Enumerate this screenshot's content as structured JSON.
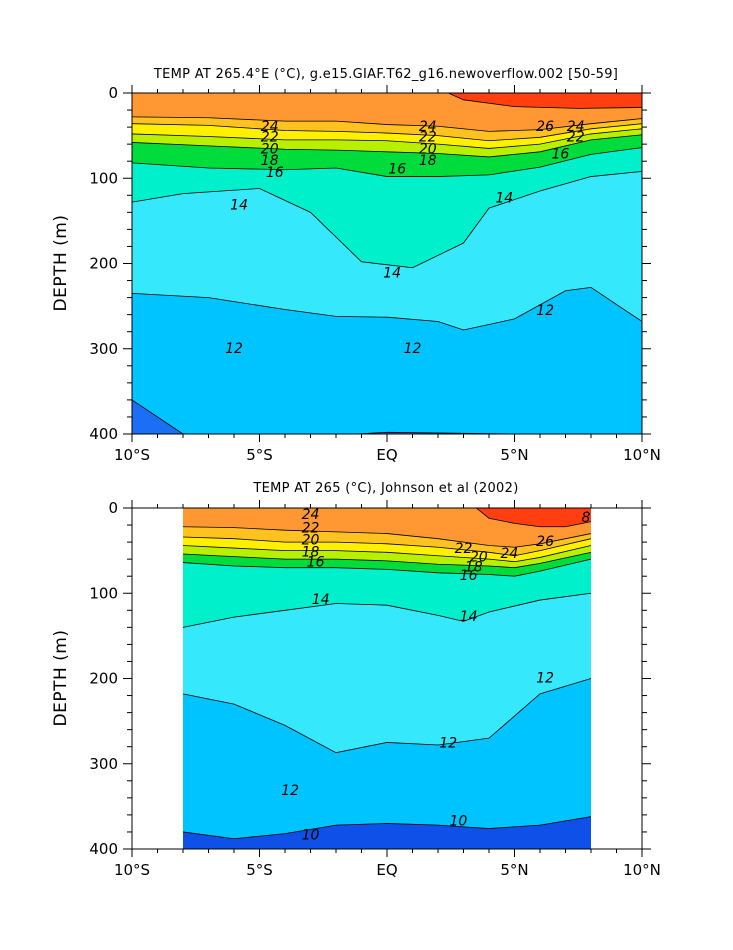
{
  "chart_data": [
    {
      "type": "heatmap",
      "title": "TEMP AT 265.4°E (°C), g.e15.GIAF.T62_g16.newoverflow.002 [50-59]",
      "ylabel": "DEPTH (m)",
      "xlabel": "",
      "x_ticks": [
        "10°S",
        "5°S",
        "EQ",
        "5°N",
        "10°N"
      ],
      "x_tick_values": [
        -10,
        -5,
        0,
        5,
        10
      ],
      "y_ticks": [
        "0",
        "100",
        "200",
        "300",
        "400"
      ],
      "y_tick_values": [
        0,
        100,
        200,
        300,
        400
      ],
      "xlim": [
        -10,
        10
      ],
      "ylim": [
        0,
        400
      ],
      "y_inverted": true,
      "data_xlim": [
        -10,
        10
      ],
      "contour_interval": 1,
      "contour_labels": [
        "24",
        "22",
        "20",
        "18",
        "16",
        "14",
        "14",
        "12",
        "12",
        "24",
        "22",
        "20",
        "18",
        "16",
        "26",
        "24",
        "22",
        "16",
        "14",
        "12"
      ],
      "isotherms": [
        {
          "temp": 26,
          "points": [
            [
              2.4,
              0
            ],
            [
              3,
              8
            ],
            [
              5,
              16
            ],
            [
              7.5,
              18
            ],
            [
              10,
              17
            ]
          ]
        },
        {
          "temp": 24,
          "points": [
            [
              -10,
              28
            ],
            [
              -7,
              29
            ],
            [
              -4,
              33
            ],
            [
              -2,
              33
            ],
            [
              0,
              37
            ],
            [
              2,
              39
            ],
            [
              4,
              45
            ],
            [
              6,
              43
            ],
            [
              8,
              36
            ],
            [
              10,
              30
            ]
          ]
        },
        {
          "temp": 22,
          "points": [
            [
              -10,
              36
            ],
            [
              -7,
              38
            ],
            [
              -4,
              44
            ],
            [
              -2,
              45
            ],
            [
              0,
              47
            ],
            [
              2,
              50
            ],
            [
              4,
              56
            ],
            [
              6,
              52
            ],
            [
              8,
              42
            ],
            [
              10,
              36
            ]
          ]
        },
        {
          "temp": 20,
          "points": [
            [
              -10,
              48
            ],
            [
              -7,
              51
            ],
            [
              -4,
              55
            ],
            [
              -2,
              55
            ],
            [
              0,
              56
            ],
            [
              2,
              60
            ],
            [
              4,
              65
            ],
            [
              6,
              60
            ],
            [
              8,
              48
            ],
            [
              10,
              42
            ]
          ]
        },
        {
          "temp": 18,
          "points": [
            [
              -10,
              58
            ],
            [
              -7,
              62
            ],
            [
              -4,
              66
            ],
            [
              -2,
              67
            ],
            [
              0,
              69
            ],
            [
              2,
              71
            ],
            [
              4,
              75
            ],
            [
              6,
              69
            ],
            [
              8,
              55
            ],
            [
              10,
              49
            ]
          ]
        },
        {
          "temp": 16,
          "points": [
            [
              -10,
              82
            ],
            [
              -7,
              88
            ],
            [
              -4,
              90
            ],
            [
              -2,
              88
            ],
            [
              0,
              98
            ],
            [
              2,
              98
            ],
            [
              4,
              96
            ],
            [
              6,
              87
            ],
            [
              8,
              72
            ],
            [
              10,
              64
            ]
          ]
        },
        {
          "temp": 14,
          "points": [
            [
              -10,
              128
            ],
            [
              -8,
              118
            ],
            [
              -5,
              112
            ],
            [
              -3,
              140
            ],
            [
              -1,
              198
            ],
            [
              1,
              205
            ],
            [
              3,
              176
            ],
            [
              4,
              135
            ],
            [
              6,
              115
            ],
            [
              8,
              98
            ],
            [
              10,
              92
            ]
          ]
        },
        {
          "temp": 12,
          "points": [
            [
              -10,
              235
            ],
            [
              -7,
              240
            ],
            [
              -4,
              254
            ],
            [
              -2,
              262
            ],
            [
              0,
              263
            ],
            [
              2,
              268
            ],
            [
              3,
              278
            ],
            [
              5,
              265
            ],
            [
              7,
              232
            ],
            [
              8,
              228
            ],
            [
              10,
              268
            ]
          ]
        },
        {
          "temp": 10,
          "points": [
            [
              -10,
              360
            ],
            [
              -8,
              400
            ],
            [
              -3,
              403
            ],
            [
              0,
              398
            ],
            [
              5,
              400
            ],
            [
              10,
              400
            ]
          ]
        }
      ]
    },
    {
      "type": "heatmap",
      "title": "TEMP AT 265 (°C), Johnson et al (2002)",
      "ylabel": "DEPTH (m)",
      "xlabel": "",
      "x_ticks": [
        "10°S",
        "5°S",
        "EQ",
        "5°N",
        "10°N"
      ],
      "x_tick_values": [
        -10,
        -5,
        0,
        5,
        10
      ],
      "y_ticks": [
        "0",
        "100",
        "200",
        "300",
        "400"
      ],
      "y_tick_values": [
        0,
        100,
        200,
        300,
        400
      ],
      "xlim": [
        -10,
        10
      ],
      "ylim": [
        0,
        400
      ],
      "y_inverted": true,
      "data_xlim": [
        -8,
        8
      ],
      "contour_interval": 1,
      "contour_labels": [
        "24",
        "22",
        "20",
        "18",
        "16",
        "14",
        "14",
        "12",
        "12",
        "12",
        "10",
        "10",
        "22",
        "20",
        "18",
        "16",
        "24",
        "26",
        "8"
      ],
      "isotherms": [
        {
          "temp": 26,
          "points": [
            [
              3.5,
              0
            ],
            [
              4,
              12
            ],
            [
              5,
              18
            ],
            [
              6,
              22
            ],
            [
              7,
              22
            ],
            [
              8,
              16
            ]
          ]
        },
        {
          "temp": 24,
          "points": [
            [
              -8,
              22
            ],
            [
              -6,
              23
            ],
            [
              -4,
              26
            ],
            [
              -2,
              28
            ],
            [
              0,
              30
            ],
            [
              2,
              36
            ],
            [
              4,
              44
            ],
            [
              5,
              46
            ],
            [
              6,
              42
            ],
            [
              8,
              30
            ]
          ]
        },
        {
          "temp": 22,
          "points": [
            [
              -8,
              34
            ],
            [
              -6,
              36
            ],
            [
              -4,
              40
            ],
            [
              -2,
              40
            ],
            [
              0,
              42
            ],
            [
              2,
              46
            ],
            [
              4,
              52
            ],
            [
              5,
              56
            ],
            [
              6,
              50
            ],
            [
              8,
              36
            ]
          ]
        },
        {
          "temp": 20,
          "points": [
            [
              -8,
              44
            ],
            [
              -6,
              47
            ],
            [
              -4,
              50
            ],
            [
              -2,
              50
            ],
            [
              0,
              52
            ],
            [
              2,
              56
            ],
            [
              4,
              60
            ],
            [
              5,
              63
            ],
            [
              6,
              58
            ],
            [
              8,
              44
            ]
          ]
        },
        {
          "temp": 18,
          "points": [
            [
              -8,
              54
            ],
            [
              -6,
              57
            ],
            [
              -4,
              60
            ],
            [
              -2,
              60
            ],
            [
              0,
              62
            ],
            [
              2,
              66
            ],
            [
              4,
              68
            ],
            [
              5,
              70
            ],
            [
              6,
              65
            ],
            [
              8,
              52
            ]
          ]
        },
        {
          "temp": 16,
          "points": [
            [
              -8,
              64
            ],
            [
              -6,
              68
            ],
            [
              -4,
              70
            ],
            [
              -2,
              70
            ],
            [
              0,
              72
            ],
            [
              2,
              76
            ],
            [
              4,
              78
            ],
            [
              5,
              80
            ],
            [
              6,
              74
            ],
            [
              8,
              60
            ]
          ]
        },
        {
          "temp": 14,
          "points": [
            [
              -8,
              140
            ],
            [
              -6,
              128
            ],
            [
              -4,
              120
            ],
            [
              -2,
              112
            ],
            [
              0,
              114
            ],
            [
              2,
              126
            ],
            [
              3,
              133
            ],
            [
              4,
              122
            ],
            [
              6,
              108
            ],
            [
              8,
              100
            ]
          ]
        },
        {
          "temp": 12,
          "points": [
            [
              -8,
              218
            ],
            [
              -6,
              230
            ],
            [
              -4,
              255
            ],
            [
              -2,
              287
            ],
            [
              0,
              275
            ],
            [
              2,
              278
            ],
            [
              4,
              270
            ],
            [
              6,
              218
            ],
            [
              8,
              200
            ]
          ]
        },
        {
          "temp": 10,
          "points": [
            [
              -8,
              380
            ],
            [
              -6,
              388
            ],
            [
              -4,
              382
            ],
            [
              -2,
              372
            ],
            [
              0,
              370
            ],
            [
              2,
              372
            ],
            [
              4,
              376
            ],
            [
              6,
              372
            ],
            [
              8,
              362
            ]
          ]
        }
      ]
    }
  ]
}
